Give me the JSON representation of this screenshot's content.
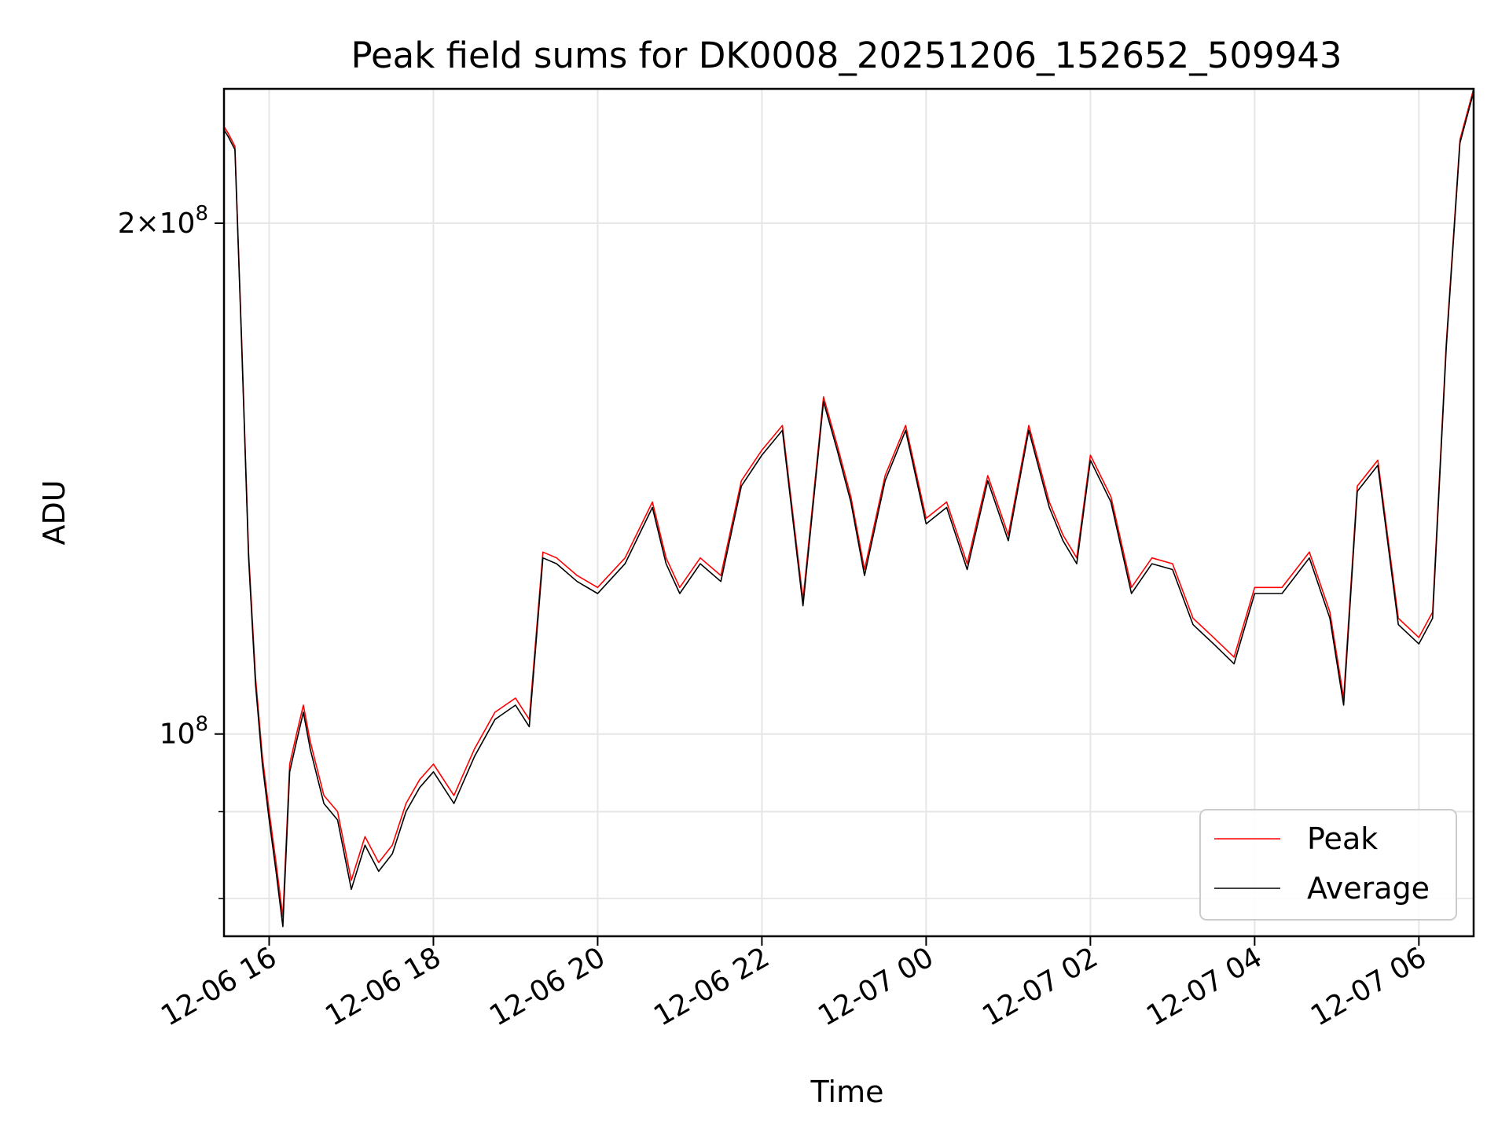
{
  "chart_data": {
    "type": "line",
    "title": "Peak field sums for DK0008_20251206_152652_509943",
    "xlabel": "Time",
    "ylabel": "ADU",
    "yscale": "log",
    "ylim": [
      76000000,
      240000000
    ],
    "xlim": [
      "2025-12-06 15:27",
      "2025-12-07 06:40"
    ],
    "grid": true,
    "legend_position": "lower right",
    "x_ticks": [
      {
        "value": "2025-12-06 16:00",
        "label": "12-06 16"
      },
      {
        "value": "2025-12-06 18:00",
        "label": "12-06 18"
      },
      {
        "value": "2025-12-06 20:00",
        "label": "12-06 20"
      },
      {
        "value": "2025-12-06 22:00",
        "label": "12-06 22"
      },
      {
        "value": "2025-12-07 00:00",
        "label": "12-07 00"
      },
      {
        "value": "2025-12-07 02:00",
        "label": "12-07 02"
      },
      {
        "value": "2025-12-07 04:00",
        "label": "12-07 04"
      },
      {
        "value": "2025-12-07 06:00",
        "label": "12-07 06"
      }
    ],
    "y_major_ticks": [
      {
        "value": 100000000,
        "mantissa": "",
        "base": "10",
        "exponent": "8"
      },
      {
        "value": 200000000,
        "mantissa": "2×",
        "base": "10",
        "exponent": "8"
      }
    ],
    "y_minor_ticks": [
      80000000,
      90000000
    ],
    "x": [
      "2025-12-06 15:27",
      "2025-12-06 15:30",
      "2025-12-06 15:35",
      "2025-12-06 15:40",
      "2025-12-06 15:45",
      "2025-12-06 15:50",
      "2025-12-06 15:55",
      "2025-12-06 16:00",
      "2025-12-06 16:05",
      "2025-12-06 16:10",
      "2025-12-06 16:15",
      "2025-12-06 16:20",
      "2025-12-06 16:25",
      "2025-12-06 16:30",
      "2025-12-06 16:40",
      "2025-12-06 16:50",
      "2025-12-06 17:00",
      "2025-12-06 17:10",
      "2025-12-06 17:20",
      "2025-12-06 17:30",
      "2025-12-06 17:40",
      "2025-12-06 17:50",
      "2025-12-06 18:00",
      "2025-12-06 18:15",
      "2025-12-06 18:30",
      "2025-12-06 18:45",
      "2025-12-06 19:00",
      "2025-12-06 19:10",
      "2025-12-06 19:20",
      "2025-12-06 19:30",
      "2025-12-06 19:45",
      "2025-12-06 20:00",
      "2025-12-06 20:20",
      "2025-12-06 20:40",
      "2025-12-06 20:50",
      "2025-12-06 21:00",
      "2025-12-06 21:15",
      "2025-12-06 21:30",
      "2025-12-06 21:45",
      "2025-12-06 22:00",
      "2025-12-06 22:15",
      "2025-12-06 22:30",
      "2025-12-06 22:45",
      "2025-12-06 22:55",
      "2025-12-06 23:05",
      "2025-12-06 23:15",
      "2025-12-06 23:30",
      "2025-12-06 23:45",
      "2025-12-07 00:00",
      "2025-12-07 00:15",
      "2025-12-07 00:30",
      "2025-12-07 00:45",
      "2025-12-07 01:00",
      "2025-12-07 01:15",
      "2025-12-07 01:30",
      "2025-12-07 01:40",
      "2025-12-07 01:50",
      "2025-12-07 02:00",
      "2025-12-07 02:15",
      "2025-12-07 02:30",
      "2025-12-07 02:45",
      "2025-12-07 03:00",
      "2025-12-07 03:15",
      "2025-12-07 03:30",
      "2025-12-07 03:45",
      "2025-12-07 04:00",
      "2025-12-07 04:20",
      "2025-12-07 04:40",
      "2025-12-07 04:55",
      "2025-12-07 05:05",
      "2025-12-07 05:15",
      "2025-12-07 05:30",
      "2025-12-07 05:45",
      "2025-12-07 06:00",
      "2025-12-07 06:10",
      "2025-12-07 06:20",
      "2025-12-07 06:30",
      "2025-12-07 06:40"
    ],
    "series": [
      {
        "name": "Peak",
        "color": "#ff0000",
        "values": [
          228000000,
          226000000,
          222000000,
          170000000,
          128000000,
          108000000,
          97000000,
          90000000,
          84000000,
          78000000,
          96000000,
          100000000,
          104000000,
          99000000,
          92000000,
          90000000,
          82000000,
          87000000,
          84000000,
          86000000,
          91000000,
          94000000,
          96000000,
          92000000,
          98000000,
          103000000,
          105000000,
          102000000,
          128000000,
          127000000,
          124000000,
          122000000,
          127000000,
          137000000,
          127000000,
          122000000,
          127000000,
          124000000,
          141000000,
          147000000,
          152000000,
          120000000,
          158000000,
          148000000,
          138000000,
          125000000,
          142000000,
          152000000,
          134000000,
          137000000,
          126000000,
          142000000,
          131000000,
          152000000,
          137000000,
          131000000,
          127000000,
          146000000,
          138000000,
          122000000,
          127000000,
          126000000,
          117000000,
          114000000,
          111000000,
          122000000,
          122000000,
          128000000,
          118000000,
          105000000,
          140000000,
          145000000,
          117000000,
          114000000,
          118000000,
          170000000,
          224000000,
          240000000
        ]
      },
      {
        "name": "Average",
        "color": "#000000",
        "values": [
          227000000,
          225000000,
          221000000,
          169000000,
          127000000,
          107000000,
          96000000,
          89000000,
          83000000,
          77000000,
          95000000,
          99000000,
          103000000,
          98000000,
          91000000,
          89000000,
          81000000,
          86000000,
          83000000,
          85000000,
          90000000,
          93000000,
          95000000,
          91000000,
          97000000,
          102000000,
          104000000,
          101000000,
          127000000,
          126000000,
          123000000,
          121000000,
          126000000,
          136000000,
          126000000,
          121000000,
          126000000,
          123000000,
          140000000,
          146000000,
          151000000,
          119000000,
          157000000,
          147000000,
          137000000,
          124000000,
          141000000,
          151000000,
          133000000,
          136000000,
          125000000,
          141000000,
          130000000,
          151000000,
          136000000,
          130000000,
          126000000,
          145000000,
          137000000,
          121000000,
          126000000,
          125000000,
          116000000,
          113000000,
          110000000,
          121000000,
          121000000,
          127000000,
          117000000,
          104000000,
          139000000,
          144000000,
          116000000,
          113000000,
          117000000,
          169000000,
          223000000,
          239000000
        ]
      }
    ]
  }
}
